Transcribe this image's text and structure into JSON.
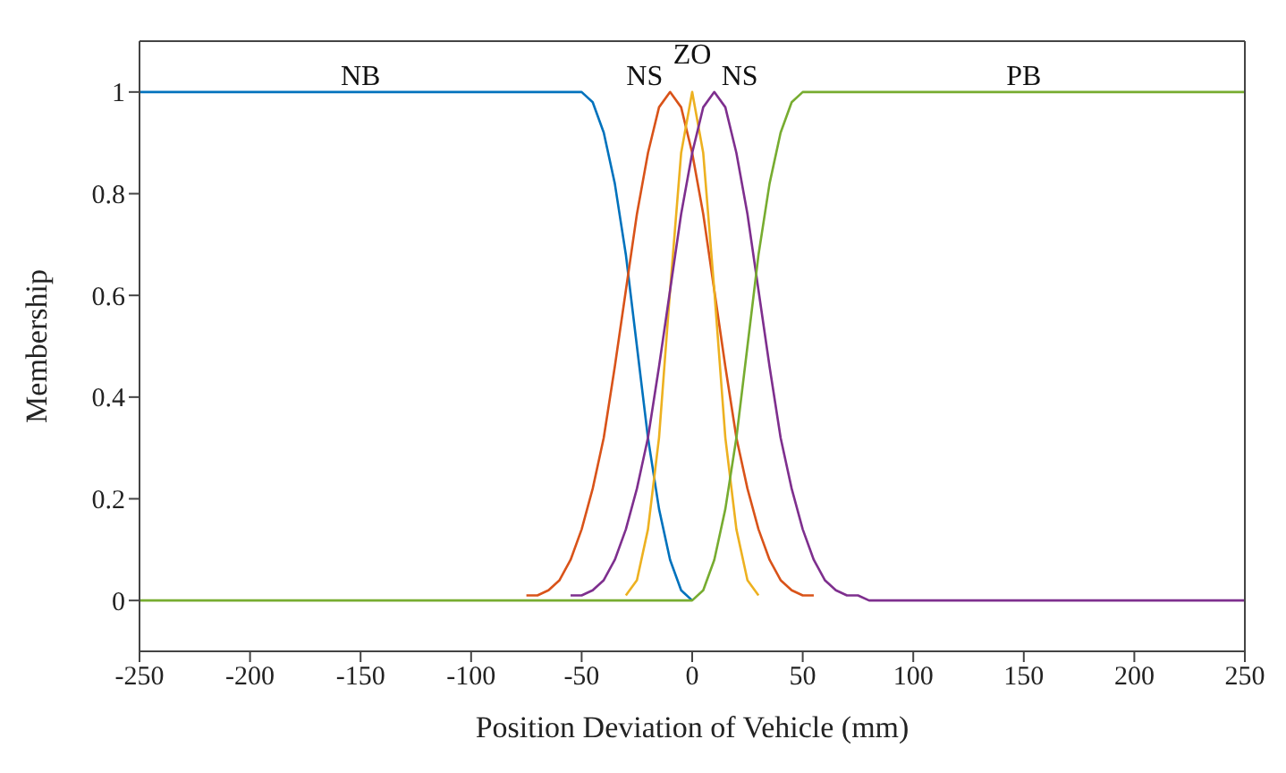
{
  "chart_data": {
    "type": "line",
    "xlabel": "Position Deviation of Vehicle (mm)",
    "ylabel": "Membership",
    "series": [
      {
        "name": "NB",
        "color": "#0072bd",
        "x": [
          -250,
          -100,
          -95,
          -90,
          -85,
          -80,
          -75,
          -70,
          -65,
          -60,
          -55,
          -50,
          -45,
          -40,
          -35,
          -30,
          -25,
          -20,
          -15,
          -10,
          -5,
          0
        ],
        "values": [
          1,
          1,
          1,
          1,
          1,
          1,
          1,
          1,
          1,
          1,
          1,
          1,
          0.98,
          0.92,
          0.82,
          0.68,
          0.5,
          0.32,
          0.18,
          0.08,
          0.02,
          0
        ]
      },
      {
        "name": "NS",
        "color": "#d95319",
        "x": [
          -75,
          -70,
          -65,
          -60,
          -55,
          -50,
          -45,
          -40,
          -35,
          -30,
          -25,
          -20,
          -15,
          -10,
          -5,
          0,
          5,
          10,
          15,
          20,
          25,
          30,
          35,
          40,
          45,
          50,
          55
        ],
        "values": [
          0.01,
          0.01,
          0.02,
          0.04,
          0.08,
          0.14,
          0.22,
          0.32,
          0.46,
          0.61,
          0.76,
          0.88,
          0.97,
          1,
          0.97,
          0.88,
          0.76,
          0.61,
          0.46,
          0.32,
          0.22,
          0.14,
          0.08,
          0.04,
          0.02,
          0.01,
          0.01
        ]
      },
      {
        "name": "ZO",
        "color": "#edb120",
        "x": [
          -30,
          -25,
          -20,
          -15,
          -10,
          -5,
          0,
          5,
          10,
          15,
          20,
          25,
          30
        ],
        "values": [
          0.01,
          0.04,
          0.14,
          0.32,
          0.61,
          0.88,
          1,
          0.88,
          0.61,
          0.32,
          0.14,
          0.04,
          0.01
        ]
      },
      {
        "name": "NS",
        "color": "#7e2f8e",
        "x": [
          -55,
          -50,
          -45,
          -40,
          -35,
          -30,
          -25,
          -20,
          -15,
          -10,
          -5,
          0,
          5,
          10,
          15,
          20,
          25,
          30,
          35,
          40,
          45,
          50,
          55,
          60,
          65,
          70,
          75,
          80,
          85,
          90,
          95,
          100,
          250
        ],
        "values": [
          0.01,
          0.01,
          0.02,
          0.04,
          0.08,
          0.14,
          0.22,
          0.32,
          0.46,
          0.61,
          0.76,
          0.88,
          0.97,
          1,
          0.97,
          0.88,
          0.76,
          0.61,
          0.46,
          0.32,
          0.22,
          0.14,
          0.08,
          0.04,
          0.02,
          0.01,
          0.01,
          0,
          0,
          0,
          0,
          0,
          0
        ]
      },
      {
        "name": "PB",
        "color": "#77ac30",
        "x": [
          -250,
          -100,
          -95,
          -90,
          -85,
          -80,
          -75,
          -70,
          -65,
          -60,
          -55,
          -50,
          -45,
          -40,
          -35,
          -30,
          -25,
          -20,
          -15,
          -10,
          -5,
          0,
          5,
          10,
          15,
          20,
          25,
          30,
          35,
          40,
          45,
          50,
          55,
          60,
          65,
          70,
          75,
          80,
          85,
          90,
          95,
          100,
          250
        ],
        "values": [
          0,
          0,
          0,
          0,
          0,
          0,
          0,
          0,
          0,
          0,
          0,
          0,
          0,
          0,
          0,
          0,
          0,
          0,
          0,
          0,
          0,
          0,
          0.02,
          0.08,
          0.18,
          0.32,
          0.5,
          0.68,
          0.82,
          0.92,
          0.98,
          1,
          1,
          1,
          1,
          1,
          1,
          1,
          1,
          1,
          1,
          1,
          1
        ]
      }
    ],
    "xlim": [
      -250,
      250
    ],
    "xticks": [
      -250,
      -200,
      -150,
      -100,
      -50,
      0,
      50,
      100,
      150,
      200,
      250
    ],
    "ylim": [
      -0.1,
      1.1
    ],
    "yticks": [
      0,
      0.2,
      0.4,
      0.6,
      0.8,
      1
    ],
    "legend": false,
    "marker": "none",
    "line_style": "solid"
  }
}
